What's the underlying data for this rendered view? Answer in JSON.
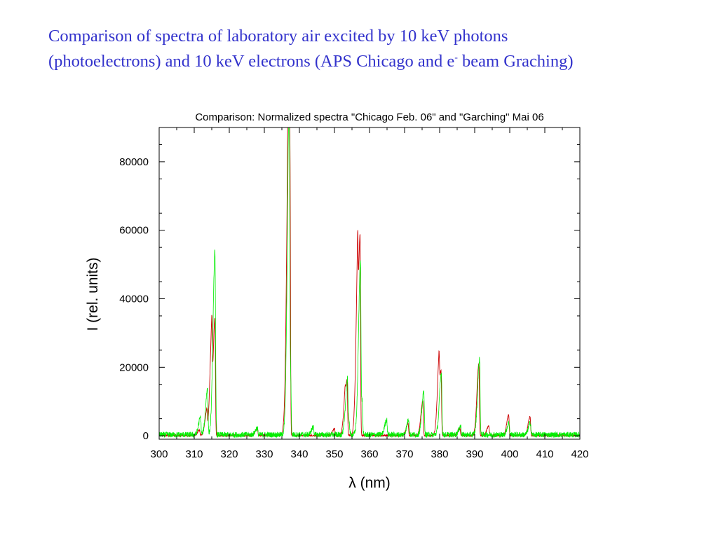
{
  "slide": {
    "title_line1": "Comparison of spectra of laboratory air excited by 10 keV photons",
    "title_line2_pre": "(photoelectrons) and 10 keV electrons (APS Chicago and e",
    "title_line2_sup": "-",
    "title_line2_post": " beam Graching)",
    "title_color": "#3333cc"
  },
  "chart_data": {
    "type": "line",
    "title": "Comparison: Normalized spectra \"Chicago Feb. 06\" and \"Garching\" Mai 06",
    "xlabel": "λ (nm)",
    "ylabel": "I (rel. units)",
    "xlim": [
      300,
      420
    ],
    "ylim": [
      -1000,
      90000
    ],
    "xticks": [
      300,
      310,
      320,
      330,
      340,
      350,
      360,
      370,
      380,
      390,
      400,
      410,
      420
    ],
    "yticks": [
      0,
      20000,
      40000,
      60000,
      80000
    ],
    "xtick_labels": [
      "300",
      "310",
      "320",
      "330",
      "340",
      "350",
      "360",
      "370",
      "380",
      "390",
      "400",
      "410",
      "420"
    ],
    "ytick_labels": [
      "0",
      "20000",
      "40000",
      "60000",
      "80000"
    ],
    "grid": false,
    "series": [
      {
        "color": "#cc0000",
        "noise": 500,
        "peaks": [
          {
            "x": 311.5,
            "y": 1500
          },
          {
            "x": 313.6,
            "y": 7000
          },
          {
            "x": 315.0,
            "y": 26000
          },
          {
            "x": 315.9,
            "y": 34000
          },
          {
            "x": 328.0,
            "y": 2200
          },
          {
            "x": 336.2,
            "y": 6000
          },
          {
            "x": 337.0,
            "y": 63000
          },
          {
            "x": 337.3,
            "y": 81000
          },
          {
            "x": 350.0,
            "y": 2000
          },
          {
            "x": 353.0,
            "y": 5000
          },
          {
            "x": 353.6,
            "y": 16500
          },
          {
            "x": 356.6,
            "y": 33000
          },
          {
            "x": 357.3,
            "y": 58500
          },
          {
            "x": 371.0,
            "y": 3500
          },
          {
            "x": 375.2,
            "y": 10000
          },
          {
            "x": 379.8,
            "y": 14000
          },
          {
            "x": 380.4,
            "y": 19000
          },
          {
            "x": 385.8,
            "y": 2000
          },
          {
            "x": 391.2,
            "y": 21000
          },
          {
            "x": 394.0,
            "y": 2800
          },
          {
            "x": 399.7,
            "y": 6000
          },
          {
            "x": 405.8,
            "y": 5500
          }
        ]
      },
      {
        "color": "#00ee00",
        "noise": 1600,
        "peaks": [
          {
            "x": 311.8,
            "y": 5000
          },
          {
            "x": 313.8,
            "y": 13500
          },
          {
            "x": 315.9,
            "y": 44000
          },
          {
            "x": 316.1,
            "y": 11000
          },
          {
            "x": 328.0,
            "y": 2000
          },
          {
            "x": 337.1,
            "y": 87000
          },
          {
            "x": 337.5,
            "y": 18000
          },
          {
            "x": 344.0,
            "y": 2200
          },
          {
            "x": 353.7,
            "y": 14000
          },
          {
            "x": 354.2,
            "y": 4000
          },
          {
            "x": 357.4,
            "y": 45000
          },
          {
            "x": 357.9,
            "y": 10000
          },
          {
            "x": 364.9,
            "y": 4500
          },
          {
            "x": 371.2,
            "y": 4500
          },
          {
            "x": 375.5,
            "y": 12500
          },
          {
            "x": 380.5,
            "y": 18000
          },
          {
            "x": 386.0,
            "y": 2500
          },
          {
            "x": 391.4,
            "y": 22000
          },
          {
            "x": 399.8,
            "y": 3500
          },
          {
            "x": 405.9,
            "y": 3500
          }
        ]
      }
    ]
  }
}
